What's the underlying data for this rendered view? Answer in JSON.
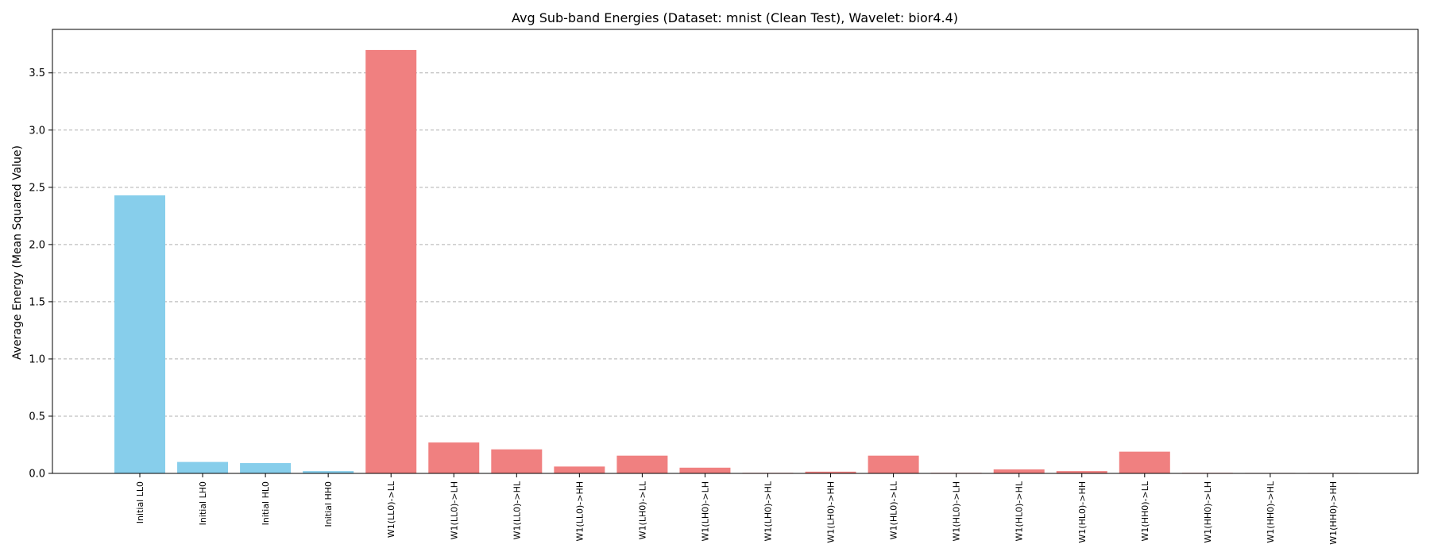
{
  "chart_data": {
    "type": "bar",
    "title": "Avg Sub-band Energies (Dataset: mnist (Clean Test), Wavelet: bior4.4)",
    "xlabel": "",
    "ylabel": "Average Energy (Mean Squared Value)",
    "ylim": [
      0,
      3.88
    ],
    "yticks": [
      "0.0",
      "0.5",
      "1.0",
      "1.5",
      "2.0",
      "2.5",
      "3.0",
      "3.5"
    ],
    "grid": "y-dashed",
    "colors": {
      "initial": "#87CEEB",
      "wavelet": "#F08080"
    },
    "categories": [
      "Initial LL0",
      "Initial LH0",
      "Initial HL0",
      "Initial HH0",
      "W1(LL0)->LL",
      "W1(LL0)->LH",
      "W1(LL0)->HL",
      "W1(LL0)->HH",
      "W1(LH0)->LL",
      "W1(LH0)->LH",
      "W1(LH0)->HL",
      "W1(LH0)->HH",
      "W1(HL0)->LL",
      "W1(HL0)->LH",
      "W1(HL0)->HL",
      "W1(HL0)->HH",
      "W1(HH0)->LL",
      "W1(HH0)->LH",
      "W1(HH0)->HL",
      "W1(HH0)->HH"
    ],
    "values": [
      2.43,
      0.1,
      0.09,
      0.02,
      3.7,
      0.27,
      0.21,
      0.06,
      0.155,
      0.05,
      0.005,
      0.015,
      0.155,
      0.005,
      0.035,
      0.02,
      0.19,
      0.005,
      0.004,
      0.004
    ],
    "groups": [
      "initial",
      "initial",
      "initial",
      "initial",
      "wavelet",
      "wavelet",
      "wavelet",
      "wavelet",
      "wavelet",
      "wavelet",
      "wavelet",
      "wavelet",
      "wavelet",
      "wavelet",
      "wavelet",
      "wavelet",
      "wavelet",
      "wavelet",
      "wavelet",
      "wavelet"
    ]
  }
}
